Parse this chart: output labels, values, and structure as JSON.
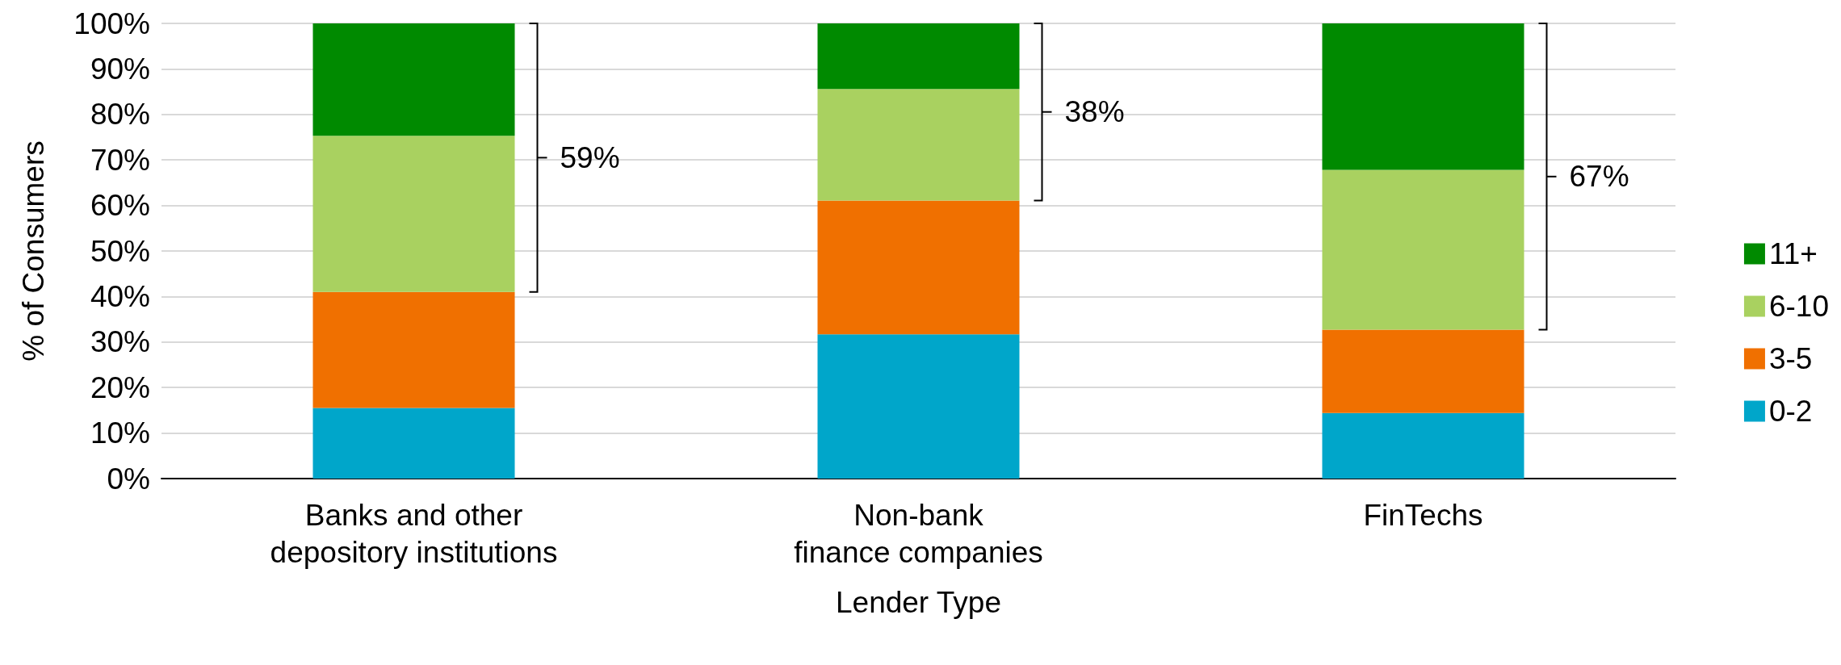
{
  "chart_data": {
    "type": "bar",
    "stacked": true,
    "xlabel": "Lender Type",
    "ylabel": "% of Consumers",
    "categories": [
      "Banks and other\ndepository institutions",
      "Non-bank\nfinance companies",
      "FinTechs"
    ],
    "series": [
      {
        "name": "0-2",
        "color": "#00a6ca",
        "values": [
          15.5,
          31.7,
          14.4
        ]
      },
      {
        "name": "3-5",
        "color": "#f07000",
        "values": [
          25.5,
          29.4,
          18.3
        ]
      },
      {
        "name": "6-10",
        "color": "#a9d160",
        "values": [
          34.3,
          24.5,
          35.1
        ]
      },
      {
        "name": "11+",
        "color": "#008a00",
        "values": [
          24.7,
          14.4,
          32.2
        ]
      }
    ],
    "ylim": [
      0,
      100
    ],
    "yticks": [
      {
        "value": 0,
        "label": "0%"
      },
      {
        "value": 10,
        "label": "10%"
      },
      {
        "value": 20,
        "label": "20%"
      },
      {
        "value": 30,
        "label": "30%"
      },
      {
        "value": 40,
        "label": "40%"
      },
      {
        "value": 50,
        "label": "50%"
      },
      {
        "value": 60,
        "label": "60%"
      },
      {
        "value": 70,
        "label": "70%"
      },
      {
        "value": 80,
        "label": "80%"
      },
      {
        "value": 90,
        "label": "90%"
      },
      {
        "value": 100,
        "label": "100%"
      }
    ],
    "grid": "y",
    "legend": "right",
    "annotations": [
      "59%",
      "38%",
      "67%"
    ]
  }
}
